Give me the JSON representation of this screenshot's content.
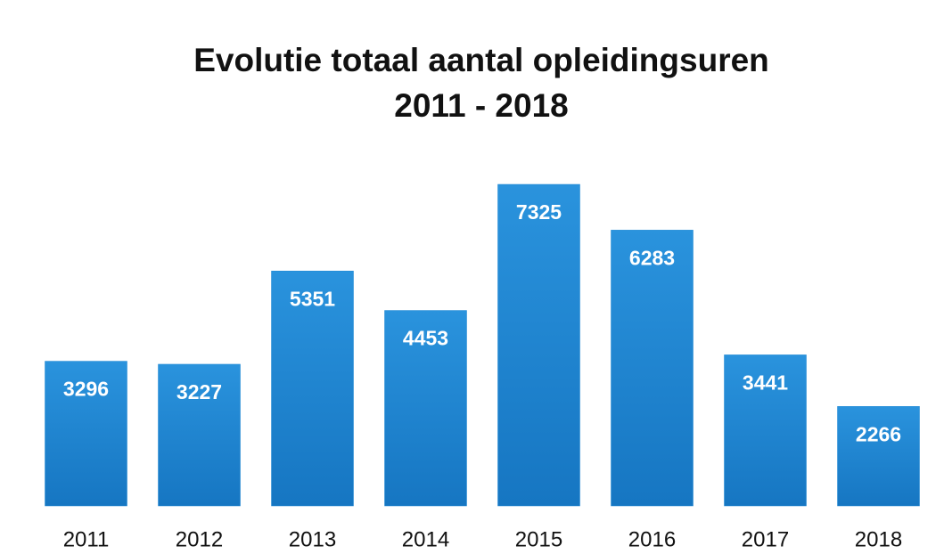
{
  "chart_data": {
    "type": "bar",
    "title": [
      "Evolutie totaal aantal opleidingsuren",
      "2011 - 2018"
    ],
    "categories": [
      "2011",
      "2012",
      "2013",
      "2014",
      "2015",
      "2016",
      "2017",
      "2018"
    ],
    "values": [
      3296,
      3227,
      5351,
      4453,
      7325,
      6283,
      3441,
      2266
    ],
    "color": "#1b86d3"
  }
}
